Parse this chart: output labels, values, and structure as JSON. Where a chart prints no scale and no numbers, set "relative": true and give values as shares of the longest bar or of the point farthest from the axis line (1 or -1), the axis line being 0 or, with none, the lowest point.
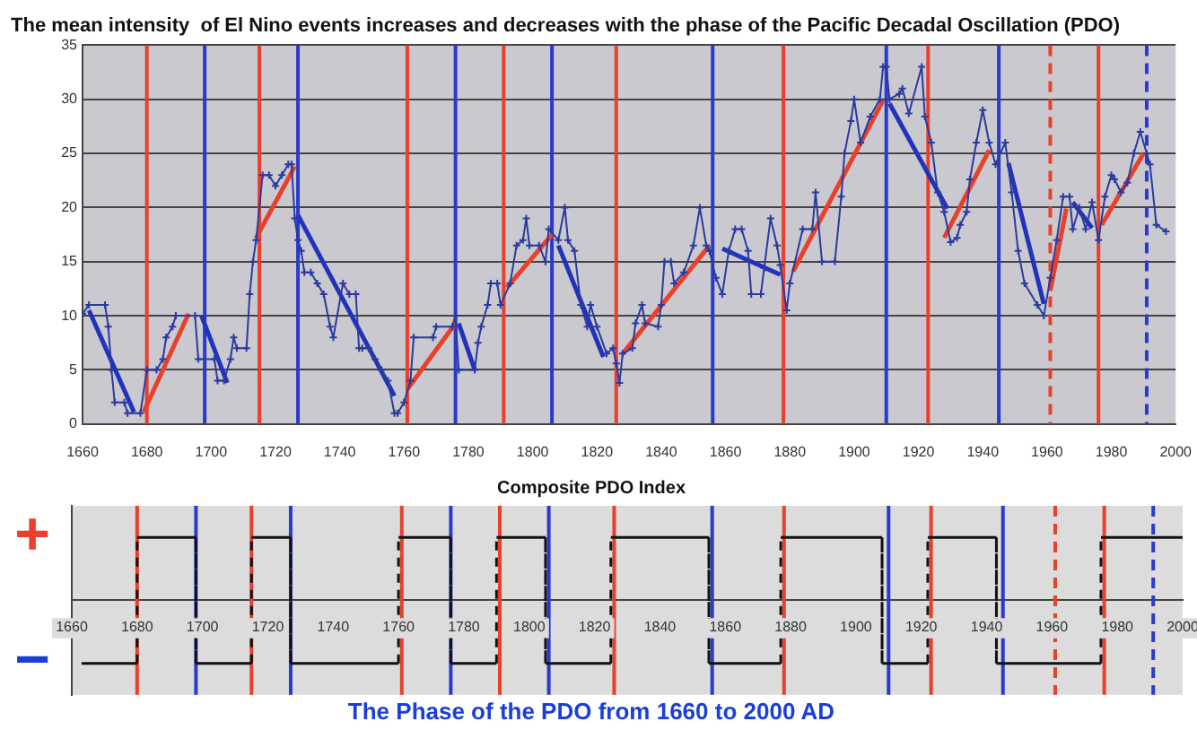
{
  "chart_data": [
    {
      "type": "line",
      "title": "The mean intensity  of El Nino events increases and decreases with the phase of the Pacific Decadal Oscillation (PDO)",
      "xlim": [
        1660,
        2000
      ],
      "xticks": [
        1660,
        1680,
        1700,
        1720,
        1740,
        1760,
        1780,
        1800,
        1820,
        1840,
        1860,
        1880,
        1900,
        1920,
        1940,
        1960,
        1980,
        2000
      ],
      "ylim": [
        0,
        35
      ],
      "yticks": [
        0,
        5,
        10,
        15,
        20,
        25,
        30,
        35
      ],
      "grid": "y",
      "series": [
        {
          "type": "line",
          "color": "#2b3a9e",
          "marker": "cross",
          "x": [
            1660,
            1662,
            1667,
            1668,
            1669,
            1670,
            1673,
            1674,
            1678,
            1680,
            1683,
            1685,
            1686,
            1688,
            1689,
            1695,
            1696,
            1701,
            1702,
            1704,
            1706,
            1707,
            1708,
            1711,
            1712,
            1713,
            1714,
            1716,
            1718,
            1720,
            1722,
            1724,
            1725,
            1726,
            1727,
            1728,
            1729,
            1731,
            1733,
            1735,
            1737,
            1738,
            1741,
            1743,
            1745,
            1746,
            1747,
            1749,
            1751,
            1753,
            1755,
            1757,
            1758,
            1760,
            1762,
            1763,
            1769,
            1770,
            1775,
            1776,
            1777,
            1782,
            1783,
            1784,
            1786,
            1787,
            1789,
            1790,
            1793,
            1795,
            1797,
            1798,
            1799,
            1802,
            1804,
            1805,
            1808,
            1810,
            1811,
            1813,
            1815,
            1817,
            1818,
            1820,
            1823,
            1825,
            1826,
            1827,
            1828,
            1831,
            1832,
            1834,
            1835,
            1839,
            1840,
            1841,
            1843,
            1844,
            1847,
            1850,
            1852,
            1854,
            1855,
            1857,
            1859,
            1861,
            1863,
            1865,
            1867,
            1868,
            1871,
            1872,
            1874,
            1876,
            1877,
            1879,
            1880,
            1884,
            1887,
            1888,
            1890,
            1894,
            1896,
            1897,
            1899,
            1900,
            1902,
            1905,
            1908,
            1909,
            1910,
            1911,
            1914,
            1915,
            1917,
            1921,
            1922,
            1924,
            1926,
            1928,
            1930,
            1932,
            1933,
            1935,
            1936,
            1938,
            1940,
            1942,
            1944,
            1947,
            1949,
            1951,
            1953,
            1957,
            1959,
            1961,
            1963,
            1965,
            1967,
            1968,
            1970,
            1972,
            1974,
            1976,
            1978,
            1980,
            1981,
            1983,
            1985,
            1987,
            1989,
            1991,
            1992,
            1994,
            1997
          ],
          "values": [
            10.2,
            11,
            11,
            9,
            5,
            2,
            2,
            1,
            1,
            5,
            5,
            6,
            8,
            9,
            10,
            10,
            6,
            6,
            4,
            4,
            6,
            8,
            7,
            7,
            12,
            15,
            17,
            23,
            23,
            22,
            23,
            24,
            24,
            19,
            17,
            16,
            14,
            14,
            13,
            12,
            9,
            8,
            13,
            12,
            12,
            7,
            7,
            7,
            6,
            5,
            4,
            1,
            1,
            2,
            4,
            8,
            8,
            9,
            9,
            10,
            5,
            5,
            7.5,
            9,
            11,
            13,
            13,
            11,
            13,
            16.5,
            17,
            19,
            16.5,
            16.5,
            15,
            18,
            17,
            20,
            17,
            16,
            11,
            9,
            11,
            9,
            6.5,
            7,
            5.6,
            3.8,
            6.5,
            7,
            9.3,
            11,
            9.3,
            9,
            11,
            15,
            15,
            13,
            14,
            16.5,
            20,
            16.5,
            16,
            13.5,
            12,
            16,
            18,
            18,
            16,
            12,
            12,
            14.4,
            19,
            16.5,
            14.7,
            10.5,
            13,
            18,
            18,
            21.4,
            15,
            15,
            21,
            25,
            28,
            30,
            26,
            28.4,
            30,
            33,
            33,
            30,
            30.5,
            31,
            28.7,
            33,
            28.4,
            26,
            21.4,
            19.6,
            16.8,
            17.2,
            18.4,
            19.6,
            22.6,
            26,
            29,
            26,
            24,
            26,
            21.4,
            16,
            13,
            11,
            10,
            13.5,
            17,
            21,
            21,
            18,
            20,
            18,
            20.5,
            17,
            21,
            23,
            22.6,
            21.4,
            22.3,
            25,
            27,
            25,
            24,
            18.4,
            17.8
          ]
        },
        {
          "type": "line",
          "color": "#e8402a",
          "x": [
            1679,
            1693
          ],
          "values": [
            1.1,
            10.2
          ]
        },
        {
          "type": "line",
          "color": "#e8402a",
          "x": [
            1714,
            1726
          ],
          "values": [
            17.2,
            23.8
          ]
        },
        {
          "type": "line",
          "color": "#e8402a",
          "x": [
            1761,
            1776
          ],
          "values": [
            3.2,
            9.3
          ]
        },
        {
          "type": "line",
          "color": "#e8402a",
          "x": [
            1792,
            1806
          ],
          "values": [
            12.6,
            17.5
          ]
        },
        {
          "type": "line",
          "color": "#e8402a",
          "x": [
            1828,
            1855
          ],
          "values": [
            6.5,
            16.5
          ]
        },
        {
          "type": "line",
          "color": "#e8402a",
          "x": [
            1881,
            1909
          ],
          "values": [
            14.1,
            29.9
          ]
        },
        {
          "type": "line",
          "color": "#e8402a",
          "x": [
            1928,
            1942
          ],
          "values": [
            17.2,
            25.3
          ]
        },
        {
          "type": "line",
          "color": "#e8402a",
          "x": [
            1961,
            1966
          ],
          "values": [
            12.3,
            19.9
          ]
        },
        {
          "type": "line",
          "color": "#e8402a",
          "x": [
            1977,
            1990
          ],
          "values": [
            18.4,
            25
          ]
        },
        {
          "type": "line",
          "color": "#2233bb",
          "x": [
            1662,
            1676
          ],
          "values": [
            10.5,
            1.1
          ]
        },
        {
          "type": "line",
          "color": "#2233bb",
          "x": [
            1697,
            1705
          ],
          "values": [
            10,
            3.8
          ]
        },
        {
          "type": "line",
          "color": "#2233bb",
          "x": [
            1727,
            1757
          ],
          "values": [
            19.3,
            2.6
          ]
        },
        {
          "type": "line",
          "color": "#2233bb",
          "x": [
            1777,
            1782
          ],
          "values": [
            9.3,
            5
          ]
        },
        {
          "type": "line",
          "color": "#2233bb",
          "x": [
            1808,
            1822
          ],
          "values": [
            16.5,
            6.2
          ]
        },
        {
          "type": "line",
          "color": "#2233bb",
          "x": [
            1859,
            1877
          ],
          "values": [
            16.2,
            13.8
          ]
        },
        {
          "type": "line",
          "color": "#2233bb",
          "x": [
            1911,
            1929
          ],
          "values": [
            29.6,
            19.9
          ]
        },
        {
          "type": "line",
          "color": "#2233bb",
          "x": [
            1948,
            1959
          ],
          "values": [
            24.1,
            11.1
          ]
        },
        {
          "type": "line",
          "color": "#2233bb",
          "x": [
            1968,
            1974
          ],
          "values": [
            20.5,
            18.1
          ]
        }
      ],
      "ref_lines": [
        {
          "axis": "x",
          "value": 1680,
          "color": "#e8402a"
        },
        {
          "axis": "x",
          "value": 1698,
          "color": "#2a3acc"
        },
        {
          "axis": "x",
          "value": 1715,
          "color": "#e8402a"
        },
        {
          "axis": "x",
          "value": 1727,
          "color": "#2a3acc"
        },
        {
          "axis": "x",
          "value": 1761,
          "color": "#e8402a"
        },
        {
          "axis": "x",
          "value": 1776,
          "color": "#2a3acc"
        },
        {
          "axis": "x",
          "value": 1791,
          "color": "#e8402a"
        },
        {
          "axis": "x",
          "value": 1806,
          "color": "#2a3acc"
        },
        {
          "axis": "x",
          "value": 1826,
          "color": "#e8402a"
        },
        {
          "axis": "x",
          "value": 1856,
          "color": "#2a3acc"
        },
        {
          "axis": "x",
          "value": 1878,
          "color": "#e8402a"
        },
        {
          "axis": "x",
          "value": 1910,
          "color": "#2a3acc"
        },
        {
          "axis": "x",
          "value": 1923,
          "color": "#e8402a"
        },
        {
          "axis": "x",
          "value": 1945,
          "color": "#2a3acc"
        },
        {
          "axis": "x",
          "value": 1961,
          "color": "#e8402a",
          "line_style": "dashed"
        },
        {
          "axis": "x",
          "value": 1976,
          "color": "#e8402a"
        },
        {
          "axis": "x",
          "value": 1991,
          "color": "#2a3acc",
          "line_style": "dashed"
        }
      ]
    },
    {
      "type": "step",
      "title": "Composite PDO Index",
      "xlabel": "The Phase of the PDO from 1660 to 2000 AD",
      "relative": true,
      "xlim": [
        1660,
        2000
      ],
      "xticks": [
        1660,
        1680,
        1700,
        1720,
        1740,
        1760,
        1780,
        1800,
        1820,
        1840,
        1860,
        1880,
        1900,
        1920,
        1940,
        1960,
        1980,
        2000
      ],
      "annotations": [
        "+",
        "−"
      ],
      "series": [
        {
          "type": "step",
          "color": "#111111",
          "x": [
            1663,
            1680,
            1698,
            1715,
            1727,
            1760,
            1776,
            1790,
            1805,
            1825,
            1855,
            1877,
            1908,
            1922,
            1943,
            1975,
            2000
          ],
          "values": [
            -1,
            1,
            -1,
            1,
            -1,
            1,
            -1,
            1,
            -1,
            1,
            -1,
            1,
            -1,
            1,
            -1,
            1,
            1
          ]
        }
      ],
      "ref_lines": [
        {
          "axis": "x",
          "value": 1680,
          "color": "#e8402a"
        },
        {
          "axis": "x",
          "value": 1698,
          "color": "#2a3acc"
        },
        {
          "axis": "x",
          "value": 1715,
          "color": "#e8402a"
        },
        {
          "axis": "x",
          "value": 1727,
          "color": "#2a3acc"
        },
        {
          "axis": "x",
          "value": 1761,
          "color": "#e8402a"
        },
        {
          "axis": "x",
          "value": 1776,
          "color": "#2a3acc"
        },
        {
          "axis": "x",
          "value": 1791,
          "color": "#e8402a"
        },
        {
          "axis": "x",
          "value": 1806,
          "color": "#2a3acc"
        },
        {
          "axis": "x",
          "value": 1826,
          "color": "#e8402a"
        },
        {
          "axis": "x",
          "value": 1856,
          "color": "#2a3acc"
        },
        {
          "axis": "x",
          "value": 1878,
          "color": "#e8402a"
        },
        {
          "axis": "x",
          "value": 1910,
          "color": "#2a3acc"
        },
        {
          "axis": "x",
          "value": 1923,
          "color": "#e8402a"
        },
        {
          "axis": "x",
          "value": 1945,
          "color": "#2a3acc"
        },
        {
          "axis": "x",
          "value": 1961,
          "color": "#e8402a",
          "line_style": "dashed"
        },
        {
          "axis": "x",
          "value": 1976,
          "color": "#e8402a"
        },
        {
          "axis": "x",
          "value": 1991,
          "color": "#2a3acc",
          "line_style": "dashed"
        }
      ]
    }
  ]
}
